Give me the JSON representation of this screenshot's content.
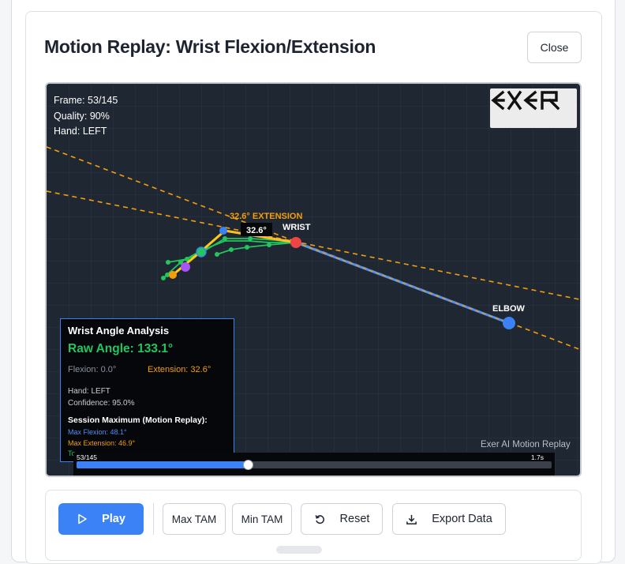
{
  "modal": {
    "title": "Motion Replay: Wrist Flexion/Extension",
    "close_label": "Close"
  },
  "viewer": {
    "frame_text": "Frame: 53/145",
    "quality_text": "Quality: 90%",
    "hand_text": "Hand: LEFT",
    "logo_text": "EXER",
    "angle_label": "32.6° EXTENSION",
    "angle_badge": "32.6°",
    "wrist_label": "WRIST",
    "elbow_label": "ELBOW",
    "brand_text": "Exer AI Motion Replay",
    "colors": {
      "accent": "#3b82f6",
      "extension": "#f59e0b",
      "flexion_green": "#22c55e",
      "joint_red": "#ef4444"
    }
  },
  "analysis": {
    "title": "Wrist Angle Analysis",
    "raw_angle": "Raw Angle: 133.1°",
    "flexion": "Flexion: 0.0°",
    "extension": "Extension: 32.6°",
    "hand": "Hand: LEFT",
    "confidence": "Confidence: 95.0%",
    "session_title": "Session Maximum (Motion Replay):",
    "max_flexion": "Max Flexion: 48.1°",
    "max_extension": "Max Extension: 46.9°",
    "total_partial": "To"
  },
  "timeline": {
    "frame_label": "53/145",
    "end_label": "1.7s",
    "progress": 0.3611
  },
  "controls": {
    "play": "Play",
    "max_tam": "Max TAM",
    "min_tam": "Min TAM",
    "reset": "Reset",
    "export": "Export Data",
    "icons": {
      "play": "play-icon",
      "reset": "reset-icon",
      "export": "download-icon"
    }
  }
}
